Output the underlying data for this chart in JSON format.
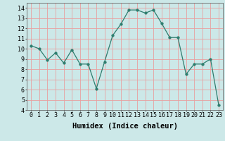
{
  "x": [
    0,
    1,
    2,
    3,
    4,
    5,
    6,
    7,
    8,
    9,
    10,
    11,
    12,
    13,
    14,
    15,
    16,
    17,
    18,
    19,
    20,
    21,
    22,
    23
  ],
  "y": [
    10.3,
    10.0,
    8.9,
    9.6,
    8.6,
    9.9,
    8.5,
    8.5,
    6.1,
    8.7,
    11.3,
    12.4,
    13.8,
    13.8,
    13.5,
    13.8,
    12.5,
    11.1,
    11.1,
    7.5,
    8.5,
    8.5,
    9.0,
    4.5
  ],
  "line_color": "#2e7d6e",
  "marker": "o",
  "marker_size": 2.5,
  "bg_color": "#cce8e8",
  "grid_color": "#e8a0a0",
  "xlabel": "Humidex (Indice chaleur)",
  "xlim": [
    -0.5,
    23.5
  ],
  "ylim": [
    4,
    14.5
  ],
  "yticks": [
    4,
    5,
    6,
    7,
    8,
    9,
    10,
    11,
    12,
    13,
    14
  ],
  "xticks": [
    0,
    1,
    2,
    3,
    4,
    5,
    6,
    7,
    8,
    9,
    10,
    11,
    12,
    13,
    14,
    15,
    16,
    17,
    18,
    19,
    20,
    21,
    22,
    23
  ],
  "tick_fontsize": 6,
  "xlabel_fontsize": 7.5
}
